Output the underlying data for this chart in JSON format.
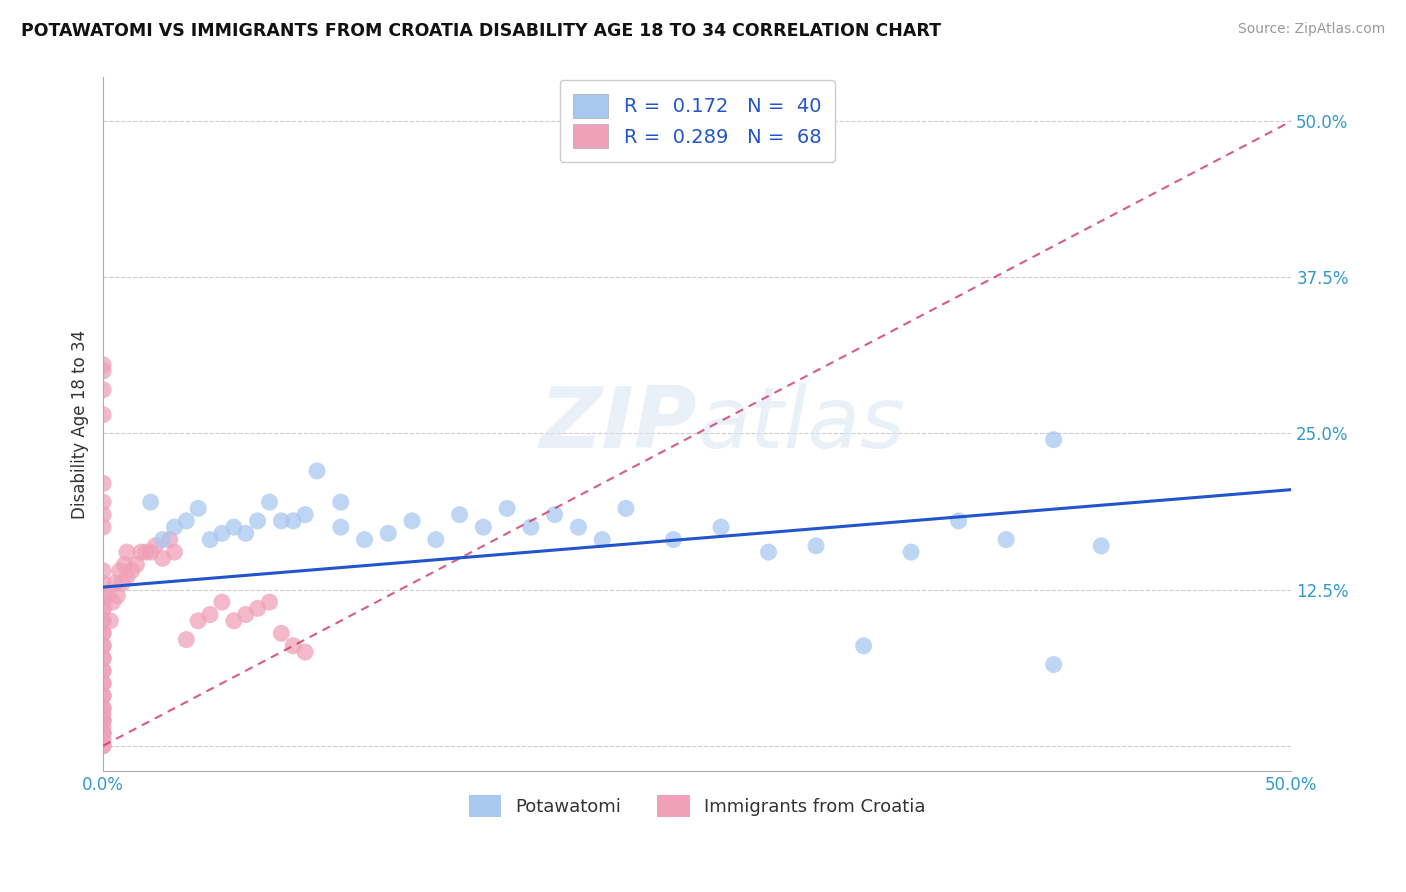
{
  "title": "POTAWATOMI VS IMMIGRANTS FROM CROATIA DISABILITY AGE 18 TO 34 CORRELATION CHART",
  "source": "Source: ZipAtlas.com",
  "ylabel": "Disability Age 18 to 34",
  "yticks": [
    0.0,
    0.125,
    0.25,
    0.375,
    0.5
  ],
  "ytick_labels": [
    "",
    "12.5%",
    "25.0%",
    "37.5%",
    "50.0%"
  ],
  "xlim": [
    0.0,
    0.5
  ],
  "ylim": [
    -0.02,
    0.535
  ],
  "legend_label1": "Potawatomi",
  "legend_label2": "Immigrants from Croatia",
  "blue_color": "#a8c8f0",
  "pink_color": "#f0a0b8",
  "blue_line_color": "#2255cc",
  "pink_line_color": "#d04070",
  "watermark_zip": "ZIP",
  "watermark_atlas": "atlas",
  "blue_line_x": [
    0.0,
    0.5
  ],
  "blue_line_y": [
    0.127,
    0.205
  ],
  "pink_line_x": [
    0.0,
    0.5
  ],
  "pink_line_y": [
    0.0,
    0.5
  ],
  "blue_scatter_x": [
    0.02,
    0.025,
    0.03,
    0.035,
    0.04,
    0.045,
    0.05,
    0.055,
    0.06,
    0.065,
    0.07,
    0.075,
    0.08,
    0.085,
    0.09,
    0.1,
    0.1,
    0.11,
    0.12,
    0.13,
    0.14,
    0.15,
    0.16,
    0.17,
    0.18,
    0.19,
    0.2,
    0.21,
    0.22,
    0.24,
    0.26,
    0.28,
    0.3,
    0.32,
    0.34,
    0.36,
    0.38,
    0.4,
    0.42,
    0.4
  ],
  "blue_scatter_y": [
    0.195,
    0.165,
    0.175,
    0.18,
    0.19,
    0.165,
    0.17,
    0.175,
    0.17,
    0.18,
    0.195,
    0.18,
    0.18,
    0.185,
    0.22,
    0.195,
    0.175,
    0.165,
    0.17,
    0.18,
    0.165,
    0.185,
    0.175,
    0.19,
    0.175,
    0.185,
    0.175,
    0.165,
    0.19,
    0.165,
    0.175,
    0.155,
    0.16,
    0.08,
    0.155,
    0.18,
    0.165,
    0.245,
    0.16,
    0.065
  ],
  "pink_scatter_x": [
    0.0,
    0.0,
    0.0,
    0.0,
    0.0,
    0.0,
    0.0,
    0.0,
    0.0,
    0.0,
    0.0,
    0.0,
    0.0,
    0.0,
    0.0,
    0.0,
    0.0,
    0.0,
    0.0,
    0.0,
    0.0,
    0.0,
    0.0,
    0.0,
    0.0,
    0.0,
    0.0,
    0.0,
    0.0,
    0.0,
    0.002,
    0.003,
    0.004,
    0.005,
    0.006,
    0.007,
    0.008,
    0.009,
    0.01,
    0.01,
    0.012,
    0.014,
    0.016,
    0.018,
    0.02,
    0.022,
    0.025,
    0.028,
    0.03,
    0.035,
    0.04,
    0.045,
    0.05,
    0.055,
    0.06,
    0.065,
    0.07,
    0.075,
    0.08,
    0.085,
    0.0,
    0.0,
    0.0,
    0.0,
    0.0,
    0.0,
    0.0,
    0.0
  ],
  "pink_scatter_y": [
    0.0,
    0.005,
    0.01,
    0.015,
    0.02,
    0.025,
    0.03,
    0.04,
    0.05,
    0.06,
    0.07,
    0.08,
    0.09,
    0.1,
    0.11,
    0.12,
    0.13,
    0.14,
    0.0,
    0.01,
    0.02,
    0.03,
    0.04,
    0.05,
    0.06,
    0.07,
    0.08,
    0.09,
    0.1,
    0.11,
    0.12,
    0.1,
    0.115,
    0.13,
    0.12,
    0.14,
    0.13,
    0.145,
    0.135,
    0.155,
    0.14,
    0.145,
    0.155,
    0.155,
    0.155,
    0.16,
    0.15,
    0.165,
    0.155,
    0.085,
    0.1,
    0.105,
    0.115,
    0.1,
    0.105,
    0.11,
    0.115,
    0.09,
    0.08,
    0.075,
    0.285,
    0.3,
    0.305,
    0.265,
    0.21,
    0.195,
    0.185,
    0.175
  ]
}
